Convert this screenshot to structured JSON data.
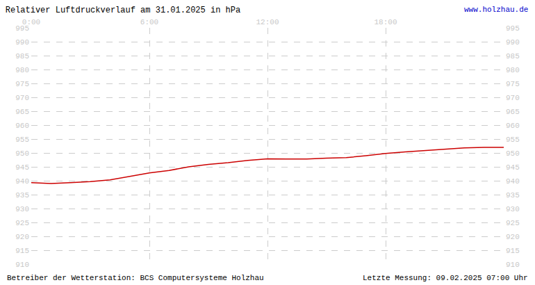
{
  "chart_data": {
    "type": "line",
    "title": "Relativer Luftdruckverlauf am 31.01.2025 in hPa",
    "annotations": [
      "www.holzhau.de",
      "Betreiber der Wetterstation: BCS Computersysteme Holzhau",
      "Letzte Messung: 09.02.2025 07:00 Uhr"
    ],
    "x": [
      0,
      1,
      2,
      3,
      4,
      5,
      6,
      7,
      8,
      9,
      10,
      11,
      12,
      13,
      14,
      15,
      16,
      17,
      18,
      19,
      20,
      21,
      22,
      23,
      24
    ],
    "values": [
      939.3,
      939.0,
      939.3,
      939.7,
      940.3,
      941.5,
      942.8,
      943.7,
      945.0,
      945.9,
      946.5,
      947.3,
      947.9,
      947.8,
      947.8,
      948.1,
      948.3,
      949.0,
      949.8,
      950.4,
      950.9,
      951.4,
      951.8,
      952.0,
      952.0
    ],
    "color": "#cc0000",
    "xlim": [
      0,
      24
    ],
    "xticks": [
      {
        "value": 0,
        "label": "0:00"
      },
      {
        "value": 6,
        "label": "6:00"
      },
      {
        "value": 12,
        "label": "12:00"
      },
      {
        "value": 18,
        "label": "18:00"
      }
    ],
    "ylim": [
      910,
      995
    ],
    "yticks": [
      910,
      915,
      920,
      925,
      930,
      935,
      940,
      945,
      950,
      955,
      960,
      965,
      970,
      975,
      980,
      985,
      990,
      995
    ],
    "grid": true
  }
}
